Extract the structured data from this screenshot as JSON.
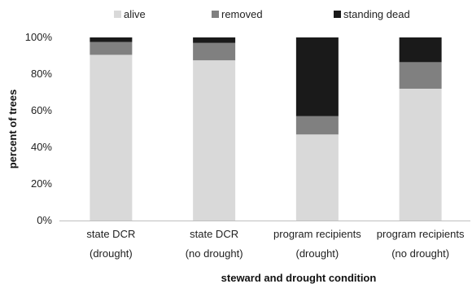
{
  "chart_data": {
    "type": "bar",
    "stacked": true,
    "normalized": true,
    "categories": [
      [
        "state DCR",
        "(drought)"
      ],
      [
        "state DCR",
        "(no drought)"
      ],
      [
        "program recipients",
        "(drought)"
      ],
      [
        "program recipients",
        "(no drought)"
      ]
    ],
    "series": [
      {
        "name": "alive",
        "color": "#d9d9d9",
        "values": [
          90.5,
          87.5,
          47.0,
          72.0
        ]
      },
      {
        "name": "removed",
        "color": "#808080",
        "values": [
          7.0,
          9.5,
          10.0,
          14.5
        ]
      },
      {
        "name": "standing dead",
        "color": "#1a1a1a",
        "values": [
          2.5,
          3.0,
          43.0,
          13.5
        ]
      }
    ],
    "xlabel": "steward and drought condition",
    "ylabel": "percent of trees",
    "ylim": [
      0,
      100
    ],
    "yticks": [
      "0%",
      "20%",
      "40%",
      "60%",
      "80%",
      "100%"
    ],
    "grid": false,
    "legend": "top"
  }
}
